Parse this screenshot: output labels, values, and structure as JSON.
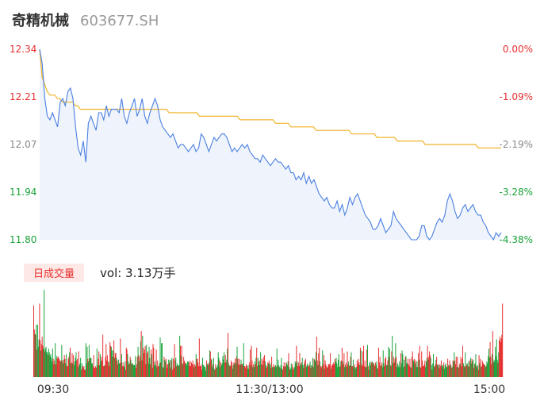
{
  "header": {
    "name": "奇精机械",
    "code": "603677.SH"
  },
  "volume_panel": {
    "badge": "日成交量",
    "label": "vol: 3.13万手"
  },
  "colors": {
    "price_line": "#4a7fe0",
    "avg_line": "#f0b429",
    "up": "#e63030",
    "down": "#1aa33a",
    "area": "#eef3fc"
  },
  "chart_data": [
    {
      "type": "line",
      "y_ticks_left": [
        "12.34",
        "12.21",
        "12.07",
        "11.94",
        "11.80"
      ],
      "y_ticks_right": [
        "0.00%",
        "-1.09%",
        "-2.19%",
        "-3.28%",
        "-4.38%"
      ],
      "ylim": [
        11.8,
        12.34
      ],
      "x_ticks": [
        "09:30",
        "11:30/13:00",
        "15:00"
      ],
      "series": [
        {
          "values": [
            12.34,
            12.3,
            12.2,
            12.15,
            12.14,
            12.16,
            12.14,
            12.12,
            12.19,
            12.2,
            12.18,
            12.22,
            12.23,
            12.2,
            12.12,
            12.06,
            12.04,
            12.08,
            12.02,
            12.13,
            12.15,
            12.13,
            12.11,
            12.16,
            12.16,
            12.14,
            12.18,
            12.15,
            12.17,
            12.17,
            12.17,
            12.16,
            12.2,
            12.15,
            12.13,
            12.16,
            12.18,
            12.2,
            12.15,
            12.17,
            12.2,
            12.15,
            12.13,
            12.16,
            12.18,
            12.2,
            12.18,
            12.14,
            12.12,
            12.11,
            12.1,
            12.09,
            12.1,
            12.08,
            12.06,
            12.07,
            12.07,
            12.06,
            12.05,
            12.06,
            12.07,
            12.05,
            12.06,
            12.1,
            12.09,
            12.07,
            12.05,
            12.07,
            12.09,
            12.08,
            12.09,
            12.1,
            12.1,
            12.09,
            12.07,
            12.05,
            12.06,
            12.05,
            12.06,
            12.07,
            12.06,
            12.07,
            12.05,
            12.04,
            12.03,
            12.03,
            12.02,
            12.04,
            12.03,
            12.02,
            12.01,
            12.02,
            12.03,
            12.02,
            12.02,
            12.01,
            12.0,
            12.01,
            11.99,
            11.99,
            11.97,
            11.98,
            11.97,
            11.99,
            11.96,
            11.98,
            11.96,
            11.97,
            11.95,
            11.93,
            11.92,
            11.91,
            11.92,
            11.9,
            11.89,
            11.89,
            11.91,
            11.88,
            11.9,
            11.87,
            11.89,
            11.92,
            11.9,
            11.92,
            11.93,
            11.91,
            11.89,
            11.87,
            11.86,
            11.85,
            11.83,
            11.83,
            11.84,
            11.86,
            11.84,
            11.82,
            11.83,
            11.84,
            11.88,
            11.86,
            11.85,
            11.84,
            11.83,
            11.82,
            11.81,
            11.8,
            11.8,
            11.8,
            11.81,
            11.84,
            11.84,
            11.81,
            11.8,
            11.81,
            11.83,
            11.85,
            11.86,
            11.85,
            11.87,
            11.91,
            11.93,
            11.91,
            11.88,
            11.86,
            11.87,
            11.89,
            11.9,
            11.88,
            11.89,
            11.9,
            11.88,
            11.87,
            11.87,
            11.85,
            11.84,
            11.82,
            11.81,
            11.8,
            11.82,
            11.81,
            11.82
          ]
        },
        {
          "values": [
            12.34,
            12.26,
            12.24,
            12.22,
            12.21,
            12.21,
            12.21,
            12.2,
            12.2,
            12.19,
            12.19,
            12.19,
            12.19,
            12.19,
            12.18,
            12.18,
            12.17,
            12.17,
            12.17,
            12.17,
            12.17,
            12.17,
            12.17,
            12.17,
            12.17,
            12.17,
            12.17,
            12.17,
            12.17,
            12.17,
            12.17,
            12.17,
            12.17,
            12.17,
            12.17,
            12.17,
            12.17,
            12.17,
            12.17,
            12.17,
            12.17,
            12.17,
            12.17,
            12.17,
            12.17,
            12.17,
            12.17,
            12.17,
            12.17,
            12.17,
            12.17,
            12.16,
            12.16,
            12.16,
            12.16,
            12.16,
            12.16,
            12.16,
            12.16,
            12.16,
            12.16,
            12.16,
            12.16,
            12.15,
            12.15,
            12.15,
            12.15,
            12.15,
            12.15,
            12.15,
            12.15,
            12.15,
            12.15,
            12.15,
            12.15,
            12.15,
            12.15,
            12.15,
            12.15,
            12.14,
            12.14,
            12.14,
            12.14,
            12.14,
            12.14,
            12.14,
            12.14,
            12.14,
            12.14,
            12.14,
            12.14,
            12.14,
            12.14,
            12.13,
            12.13,
            12.13,
            12.13,
            12.13,
            12.13,
            12.12,
            12.12,
            12.12,
            12.12,
            12.12,
            12.12,
            12.12,
            12.12,
            12.12,
            12.12,
            12.11,
            12.11,
            12.11,
            12.11,
            12.11,
            12.11,
            12.11,
            12.11,
            12.11,
            12.11,
            12.11,
            12.11,
            12.11,
            12.11,
            12.1,
            12.1,
            12.1,
            12.1,
            12.1,
            12.1,
            12.1,
            12.1,
            12.1,
            12.1,
            12.09,
            12.09,
            12.09,
            12.09,
            12.09,
            12.09,
            12.09,
            12.09,
            12.08,
            12.08,
            12.08,
            12.08,
            12.08,
            12.08,
            12.08,
            12.08,
            12.08,
            12.08,
            12.08,
            12.07,
            12.07,
            12.07,
            12.07,
            12.07,
            12.07,
            12.07,
            12.07,
            12.07,
            12.07,
            12.07,
            12.07,
            12.07,
            12.07,
            12.07,
            12.07,
            12.07,
            12.07,
            12.07,
            12.07,
            12.07,
            12.06,
            12.06,
            12.06,
            12.06,
            12.06,
            12.06,
            12.06,
            12.06,
            12.06,
            12.06
          ]
        }
      ]
    },
    {
      "type": "bar",
      "volumes": [
        78,
        52,
        47,
        46,
        57,
        30,
        57,
        33,
        41,
        80,
        40,
        29,
        36,
        44,
        34,
        31,
        95,
        28,
        31,
        33,
        27,
        27,
        24,
        31,
        27,
        23,
        25,
        21,
        17,
        31,
        20,
        14,
        18,
        37,
        14,
        23,
        20,
        22,
        22,
        20,
        18,
        17,
        18,
        35,
        18,
        15,
        19,
        24,
        20,
        15,
        25,
        12,
        12,
        20,
        22,
        27,
        32,
        15,
        16,
        26,
        15,
        24,
        13,
        17,
        21,
        27,
        18,
        20,
        11,
        28,
        13,
        15,
        21,
        8,
        15,
        12,
        10,
        12,
        8,
        8,
        37,
        15,
        33,
        20,
        17,
        35,
        20,
        21,
        21,
        15,
        15,
        12,
        24,
        10,
        10,
        12,
        10,
        31,
        13,
        20,
        28,
        13,
        25,
        17,
        22,
        18,
        46,
        12,
        12,
        13,
        22,
        36,
        18,
        24,
        16,
        17,
        12,
        38,
        34,
        33,
        29,
        22,
        29,
        40,
        21,
        26,
        26,
        21,
        18,
        14,
        19,
        15,
        15,
        42,
        16,
        25,
        12,
        16,
        12,
        11,
        17,
        8,
        32,
        30,
        25,
        17,
        14,
        15,
        22,
        19,
        15,
        14,
        15,
        13,
        13,
        13,
        23,
        10,
        14,
        22,
        33,
        24,
        17,
        22,
        39,
        50,
        18,
        45,
        32,
        26,
        30,
        34,
        14,
        35,
        26,
        28,
        15,
        33,
        21,
        14,
        30,
        25,
        10,
        36,
        32,
        13,
        17,
        13,
        30,
        11,
        18,
        12,
        12,
        15,
        43,
        16,
        37,
        37,
        10,
        11,
        22,
        19,
        17,
        20,
        10,
        14,
        14,
        19,
        16,
        19,
        10,
        18,
        21,
        8,
        20,
        10,
        36,
        18,
        21,
        12,
        15,
        13,
        12,
        13,
        45,
        34,
        23,
        34,
        14,
        15,
        22,
        18,
        16,
        15,
        15,
        13,
        17,
        17,
        16,
        12,
        18,
        12,
        16,
        14,
        18,
        14,
        11,
        14,
        12,
        25,
        20,
        20,
        16,
        12,
        42,
        12,
        12,
        14,
        8,
        21,
        13,
        13,
        11,
        11,
        7,
        18,
        15,
        13,
        14,
        16,
        29,
        28,
        20,
        19,
        11,
        14,
        21,
        9,
        8,
        14,
        11,
        10,
        13,
        27,
        21,
        18,
        11,
        16,
        13,
        15,
        23,
        19,
        27,
        16,
        24,
        16,
        19,
        31,
        48,
        15,
        12,
        13,
        12,
        18,
        16,
        9,
        13,
        16,
        15,
        20,
        15,
        22,
        33,
        20,
        14,
        20,
        13,
        14,
        19,
        14,
        14,
        15,
        37,
        12,
        12,
        10,
        14,
        12,
        9,
        13,
        9,
        16,
        30,
        13,
        34,
        18,
        11,
        14,
        11,
        17,
        14,
        21,
        32,
        12,
        21,
        17,
        13,
        18,
        27,
        14,
        20,
        13,
        18,
        22,
        24,
        17,
        13,
        10,
        12,
        16,
        15,
        18,
        13,
        15,
        10,
        22,
        11,
        11,
        14,
        12,
        11,
        13,
        11,
        31,
        12,
        19,
        13,
        11,
        10,
        13,
        21,
        9,
        8,
        12,
        16,
        11,
        12,
        16,
        15,
        13,
        17,
        26,
        11,
        8,
        9,
        15,
        11,
        14,
        8,
        10,
        11,
        17,
        15,
        34,
        17,
        12,
        16,
        12,
        26,
        15,
        13,
        16,
        21,
        13,
        10,
        15,
        18,
        20,
        11,
        13,
        15,
        12,
        12,
        14,
        17,
        10,
        13,
        12,
        21,
        11,
        20,
        19,
        17,
        27,
        44,
        18,
        13,
        26,
        32,
        17,
        12,
        10,
        12,
        29,
        14,
        24,
        9,
        18,
        14,
        12,
        10,
        11,
        14,
        14,
        14,
        26,
        9,
        12,
        14,
        14,
        16,
        14,
        20,
        17,
        21,
        15,
        11,
        19,
        25,
        11,
        12,
        17,
        18,
        32,
        17,
        14,
        26,
        11,
        13,
        16,
        11,
        28,
        14,
        17,
        12,
        13,
        22,
        27,
        12,
        12,
        19,
        11,
        14,
        11,
        9,
        11,
        18,
        14,
        20,
        16,
        13,
        32,
        29,
        14,
        12,
        28,
        34,
        12,
        18,
        11,
        11,
        30,
        35,
        12,
        8,
        15,
        17,
        13,
        16,
        17,
        16,
        15,
        14,
        12,
        16,
        13,
        17,
        10,
        9,
        32,
        16,
        22,
        12,
        13,
        16,
        11,
        29,
        15,
        12,
        20,
        22,
        13,
        13,
        18,
        33,
        22,
        31,
        13,
        12,
        28,
        45,
        15,
        22,
        16,
        20,
        37,
        22,
        11,
        15,
        13,
        11,
        17,
        11,
        26,
        15,
        29,
        25,
        11,
        19,
        12,
        22,
        23,
        15,
        15,
        20,
        14,
        12,
        20,
        11,
        10,
        22,
        28,
        19,
        17,
        20,
        15,
        18,
        11,
        17,
        11,
        26,
        19,
        34,
        11,
        10,
        28,
        18,
        12,
        12,
        14,
        18,
        11,
        17,
        21,
        34,
        19,
        22,
        28,
        24,
        21,
        13,
        8,
        15,
        25,
        11,
        12,
        14,
        19,
        22,
        13,
        14,
        13,
        10,
        14,
        12,
        18,
        13,
        11,
        13,
        16,
        9,
        13,
        15,
        11,
        11,
        20,
        13,
        12,
        18,
        14,
        13,
        10,
        11,
        18,
        17,
        27,
        18,
        14,
        22,
        11,
        22,
        11,
        10,
        14,
        15,
        22,
        12,
        20,
        34,
        15,
        12,
        11,
        27,
        12,
        14,
        15,
        12,
        17,
        11,
        18,
        21,
        15,
        20,
        17,
        19,
        10,
        14,
        15,
        25,
        12,
        11,
        13,
        8,
        24,
        15,
        20,
        11,
        12,
        18,
        16,
        14,
        14,
        13,
        11,
        12,
        17,
        15,
        23,
        31,
        21,
        38,
        22,
        14,
        25,
        50,
        16,
        19,
        17,
        33,
        23,
        41,
        19,
        16,
        27,
        40,
        44,
        38,
        42,
        46,
        80
      ]
    }
  ]
}
